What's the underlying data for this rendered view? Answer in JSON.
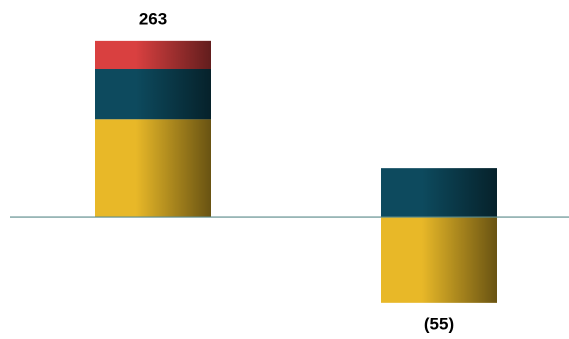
{
  "chart_data": {
    "type": "stacked_bar",
    "categories": [
      null,
      null
    ],
    "series": [
      {
        "color": "#e8b828",
        "values": [
          146,
          -128
        ]
      },
      {
        "color": "#0d4a5e",
        "values": [
          75,
          73
        ]
      },
      {
        "color": "#d94040",
        "values": [
          42,
          0
        ]
      }
    ],
    "totals": [
      263,
      -55
    ],
    "value_labels": [
      "263",
      "(55)"
    ],
    "ylim": [
      -182,
      324
    ],
    "zero_line_color": "#5a8a8a"
  }
}
